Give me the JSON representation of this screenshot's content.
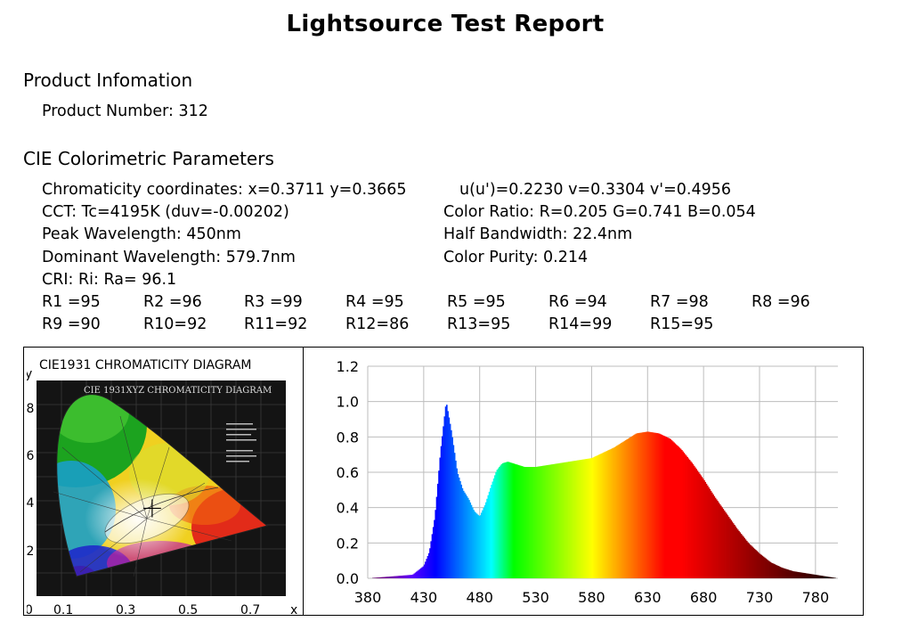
{
  "report": {
    "title": "Lightsource Test Report",
    "product_section": "Product Infomation",
    "product_number": "Product Number: 312",
    "cie_section": "CIE Colorimetric Parameters"
  },
  "params": {
    "chromaticity": "Chromaticity coordinates: x=0.3711 y=0.3665",
    "uv": "u(u')=0.2230 v=0.3304 v'=0.4956",
    "cct": "CCT: Tc=4195K (duv=-0.00202)",
    "color_ratio": "Color Ratio: R=0.205  G=0.741  B=0.054",
    "peak": "Peak Wavelength: 450nm",
    "half_bw": "Half Bandwidth: 22.4nm",
    "dominant": "Dominant Wavelength: 579.7nm",
    "purity": "Color Purity: 0.214",
    "cri": "CRI: Ri: Ra= 96.1"
  },
  "ri_values": [
    [
      "R1 =95",
      "R2 =96",
      "R3 =99",
      "R4 =95",
      "R5 =95",
      "R6 =94",
      "R7 =98",
      "R8 =96"
    ],
    [
      "R9 =90",
      "R10=92",
      "R11=92",
      "R12=86",
      "R13=95",
      "R14=99",
      "R15=95"
    ]
  ],
  "cie_diagram": {
    "title": "CIE1931 CHROMATICITY DIAGRAM",
    "inner_title": "CIE 1931XYZ CHROMATICITY DIAGRAM",
    "y_axis_label": "y",
    "x_axis_label": "x",
    "y_ticks": [
      ".8",
      ".6",
      ".4",
      ".2"
    ],
    "x_ticks": [
      "0",
      "0.1",
      "0.3",
      "0.5",
      "0.7"
    ],
    "point": {
      "x": 0.3711,
      "y": 0.3665
    }
  },
  "chart_data": {
    "type": "area",
    "title": "",
    "xlabel": "",
    "ylabel": "",
    "xlim": [
      380,
      800
    ],
    "ylim": [
      0,
      1.2
    ],
    "x_ticks": [
      "380",
      "430",
      "480",
      "530",
      "580",
      "630",
      "680",
      "730",
      "780"
    ],
    "y_ticks": [
      "0.0",
      "0.2",
      "0.4",
      "0.6",
      "0.8",
      "1.0",
      "1.2"
    ],
    "grid": true,
    "colormap": "spectral (wavelength color)",
    "x": [
      380,
      400,
      420,
      430,
      435,
      440,
      445,
      450,
      455,
      460,
      465,
      470,
      475,
      480,
      485,
      490,
      495,
      500,
      505,
      510,
      520,
      530,
      540,
      560,
      580,
      600,
      610,
      620,
      630,
      640,
      650,
      660,
      670,
      680,
      690,
      700,
      710,
      720,
      730,
      740,
      750,
      760,
      770,
      780,
      790,
      800
    ],
    "y": [
      0.0,
      0.01,
      0.02,
      0.07,
      0.15,
      0.35,
      0.72,
      1.0,
      0.82,
      0.6,
      0.5,
      0.45,
      0.38,
      0.35,
      0.42,
      0.52,
      0.61,
      0.65,
      0.66,
      0.65,
      0.63,
      0.63,
      0.64,
      0.66,
      0.68,
      0.74,
      0.78,
      0.82,
      0.83,
      0.82,
      0.79,
      0.73,
      0.65,
      0.56,
      0.46,
      0.37,
      0.28,
      0.2,
      0.14,
      0.09,
      0.06,
      0.04,
      0.03,
      0.02,
      0.01,
      0.0
    ]
  }
}
